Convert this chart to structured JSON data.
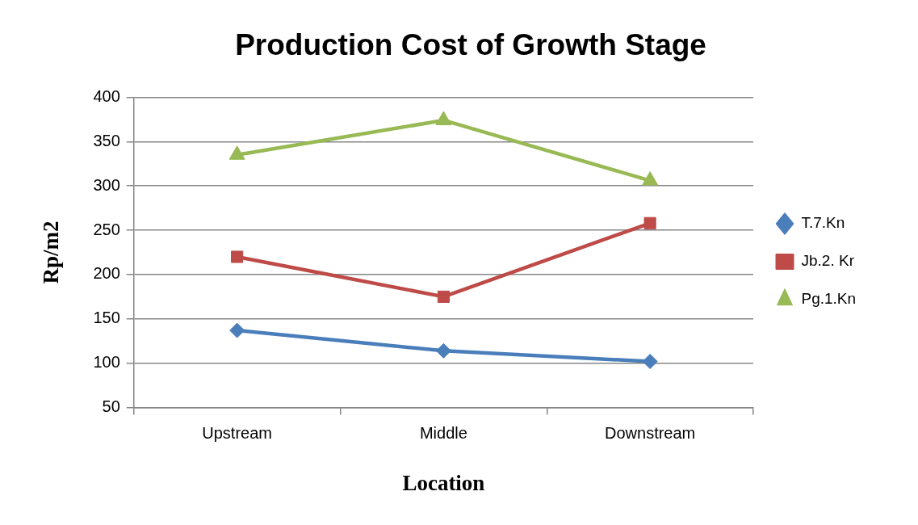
{
  "chart_data": {
    "type": "line",
    "title": "Production Cost of Growth Stage",
    "xlabel": "Location",
    "ylabel": "Rp/m2",
    "categories": [
      "Upstream",
      "Middle",
      "Downstream"
    ],
    "series": [
      {
        "name": "T.7.Kn",
        "color": "#4a7ebb",
        "values": [
          137,
          114,
          102
        ],
        "marker": "diamond"
      },
      {
        "name": "Jb.2. Kr",
        "color": "#be4b48",
        "values": [
          220,
          175,
          258
        ],
        "marker": "square"
      },
      {
        "name": "Pg.1.Kn",
        "color": "#98b954",
        "values": [
          335,
          374,
          306
        ],
        "marker": "triangle"
      }
    ],
    "ylim": [
      50,
      400
    ],
    "yticks": [
      50,
      100,
      150,
      200,
      250,
      300,
      350,
      400
    ],
    "grid": "y",
    "legend": "right",
    "line_style": "solid"
  }
}
